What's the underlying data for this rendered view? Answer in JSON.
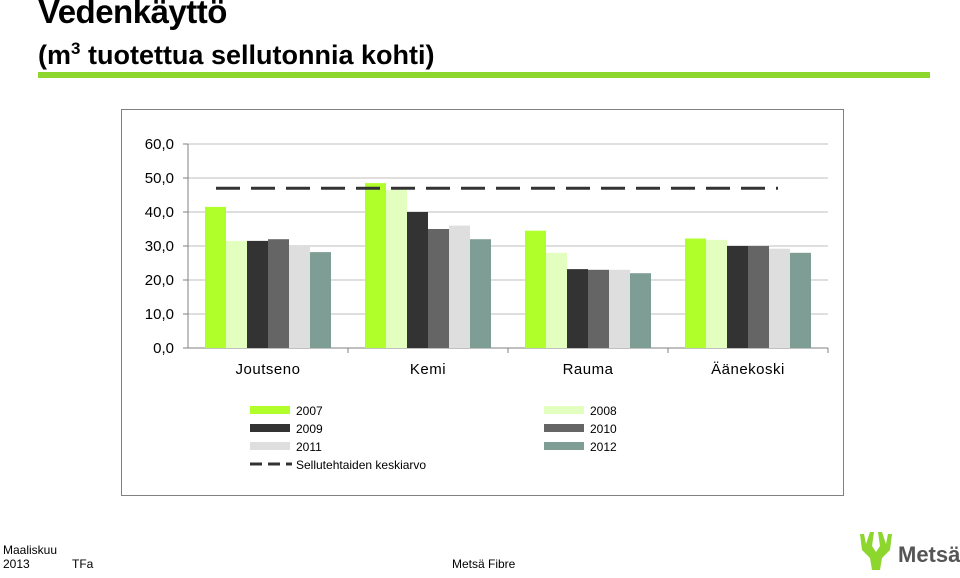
{
  "header": {
    "title": "Vedenkäyttö",
    "subtitle_pre": "(m",
    "subtitle_sup": "3",
    "subtitle_post": " tuotettua sellutonnia kohti)"
  },
  "footer": {
    "date_line1": "Maaliskuu",
    "date_line2": "2013",
    "author": "TFa",
    "company": "Metsä Fibre",
    "logo_text": "Metsä"
  },
  "colors": {
    "accent": "#8cd62d",
    "series": [
      "#b0ff2a",
      "#e3ffbf",
      "#333333",
      "#656565",
      "#dedede",
      "#7e9e95"
    ]
  },
  "chart_data": {
    "type": "bar",
    "categories": [
      "Joutseno",
      "Kemi",
      "Rauma",
      "Äänekoski"
    ],
    "series": [
      {
        "name": "2007",
        "values": [
          41.5,
          48.5,
          34.5,
          32.2
        ]
      },
      {
        "name": "2008",
        "values": [
          31.5,
          46.5,
          28.0,
          31.8
        ]
      },
      {
        "name": "2009",
        "values": [
          31.5,
          40.0,
          23.2,
          30.0
        ]
      },
      {
        "name": "2010",
        "values": [
          32.0,
          35.0,
          23.0,
          30.0
        ]
      },
      {
        "name": "2011",
        "values": [
          30.0,
          36.0,
          23.0,
          29.2
        ]
      },
      {
        "name": "2012",
        "values": [
          28.2,
          32.0,
          22.0,
          28.0
        ]
      }
    ],
    "reference_line": {
      "name": "Sellutehtaiden keskiarvo",
      "value": 47.0,
      "style": "dashed"
    },
    "ylim": [
      0,
      60
    ],
    "yticks": [
      "0,0",
      "10,0",
      "20,0",
      "30,0",
      "40,0",
      "50,0",
      "60,0"
    ],
    "ytick_values": [
      0,
      10,
      20,
      30,
      40,
      50,
      60
    ],
    "grid": true,
    "legend_position": "bottom"
  }
}
